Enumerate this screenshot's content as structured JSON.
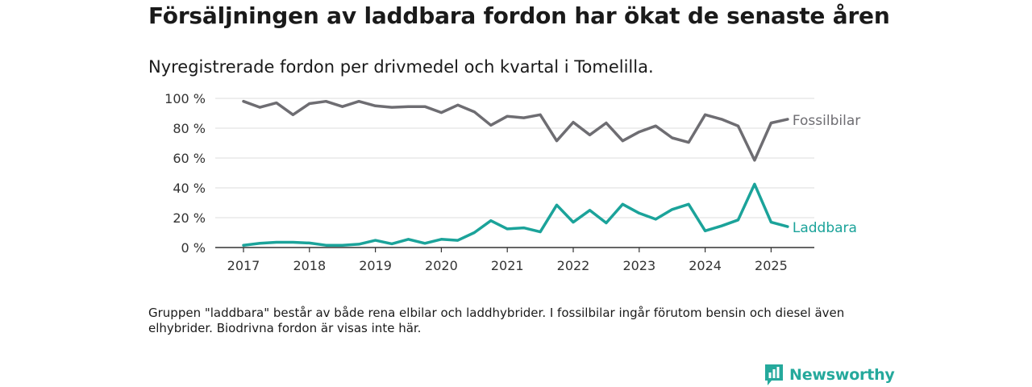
{
  "header": {
    "title": "Försäljningen av laddbara fordon har ökat de senaste åren",
    "subtitle": "Nyregistrerade fordon per drivmedel och kvartal i Tomelilla."
  },
  "footnote": "Gruppen \"laddbara\" består av både rena elbilar och laddhybrider. I fossilbilar ingår förutom bensin och diesel även elhybrider. Biodrivna fordon är visas inte här.",
  "brand": {
    "name": "Newsworthy",
    "color": "#25a99c",
    "icon": "newsworthy-logo-icon"
  },
  "chart_data": {
    "type": "line",
    "title": "",
    "xlabel": "",
    "ylabel": "",
    "ylim": [
      0,
      100
    ],
    "y_ticks": [
      0,
      20,
      40,
      60,
      80,
      100
    ],
    "y_tick_labels": [
      "0 %",
      "20 %",
      "40 %",
      "60 %",
      "80 %",
      "100 %"
    ],
    "x_ticks": [
      2017,
      2018,
      2019,
      2020,
      2021,
      2022,
      2023,
      2024,
      2025
    ],
    "x_tick_labels": [
      "2017",
      "2018",
      "2019",
      "2020",
      "2021",
      "2022",
      "2023",
      "2024",
      "2025"
    ],
    "x": [
      2017.0,
      2017.25,
      2017.5,
      2017.75,
      2018.0,
      2018.25,
      2018.5,
      2018.75,
      2019.0,
      2019.25,
      2019.5,
      2019.75,
      2020.0,
      2020.25,
      2020.5,
      2020.75,
      2021.0,
      2021.25,
      2021.5,
      2021.75,
      2022.0,
      2022.25,
      2022.5,
      2022.75,
      2023.0,
      2023.25,
      2023.5,
      2023.75,
      2024.0,
      2024.25,
      2024.5,
      2024.75,
      2025.0,
      2025.25
    ],
    "grid": true,
    "legend": "inline labels at line ends",
    "series": [
      {
        "name": "Fossilbilar",
        "color": "#6e6d72",
        "values": [
          98,
          94,
          97,
          89,
          96.5,
          98,
          94.5,
          98,
          95,
          94,
          94.5,
          94.5,
          90.5,
          95.5,
          91,
          82,
          88,
          87,
          89,
          71.5,
          84,
          75.5,
          83.5,
          71.5,
          77.5,
          81.5,
          73.5,
          70.5,
          89,
          86,
          81.5,
          58.5,
          83.5,
          86
        ]
      },
      {
        "name": "Laddbara",
        "color": "#1ba39a",
        "values": [
          1.5,
          2.8,
          3.5,
          3.5,
          3,
          1.5,
          1.5,
          2.2,
          4.8,
          2.5,
          5.5,
          2.8,
          5.5,
          4.8,
          10,
          18,
          12.5,
          13.2,
          10.5,
          28.5,
          17,
          25,
          16.5,
          29,
          23,
          19,
          25.5,
          29,
          11.2,
          14.5,
          18.5,
          42.5,
          17,
          14
        ]
      }
    ]
  }
}
